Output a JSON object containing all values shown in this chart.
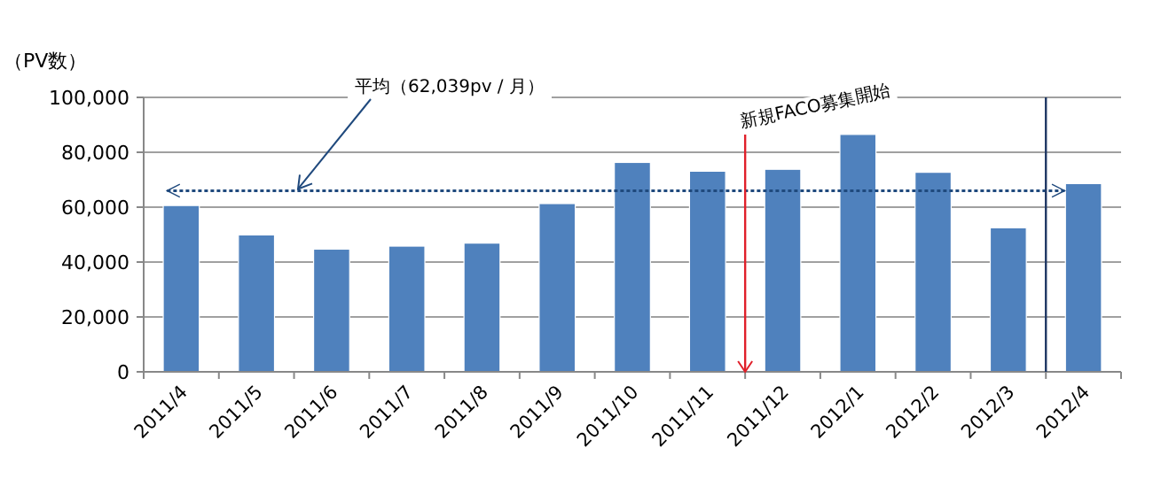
{
  "chart_data": {
    "type": "bar",
    "ylabel": "（PV数）",
    "categories": [
      "2011/4",
      "2011/5",
      "2011/6",
      "2011/7",
      "2011/8",
      "2011/9",
      "2011/10",
      "2011/11",
      "2011/12",
      "2012/1",
      "2012/2",
      "2012/3",
      "2012/4"
    ],
    "values": [
      60600,
      49900,
      44700,
      45800,
      46900,
      61300,
      76300,
      73100,
      73800,
      86500,
      72700,
      52500,
      68600
    ],
    "color": "#4f81bd",
    "ylim": [
      0,
      100000
    ],
    "yticks": [
      {
        "value": 0,
        "label": "0"
      },
      {
        "value": 20000,
        "label": "20,000"
      },
      {
        "value": 40000,
        "label": "40,000"
      },
      {
        "value": 60000,
        "label": "60,000"
      },
      {
        "value": 80000,
        "label": "80,000"
      },
      {
        "value": 100000,
        "label": "100,000"
      }
    ],
    "grid": "y",
    "ref_lines": [
      {
        "axis": "y",
        "value": 66000,
        "label": "平均（62,039pv / 月）",
        "color": "#1f497d",
        "line_style": "dotted"
      },
      {
        "axis": "x",
        "value": "2011/12",
        "label": "新規FACO募集開始",
        "color": "#e0202a"
      },
      {
        "axis": "x",
        "value": "2012/4",
        "color": "#1f3864"
      }
    ]
  }
}
